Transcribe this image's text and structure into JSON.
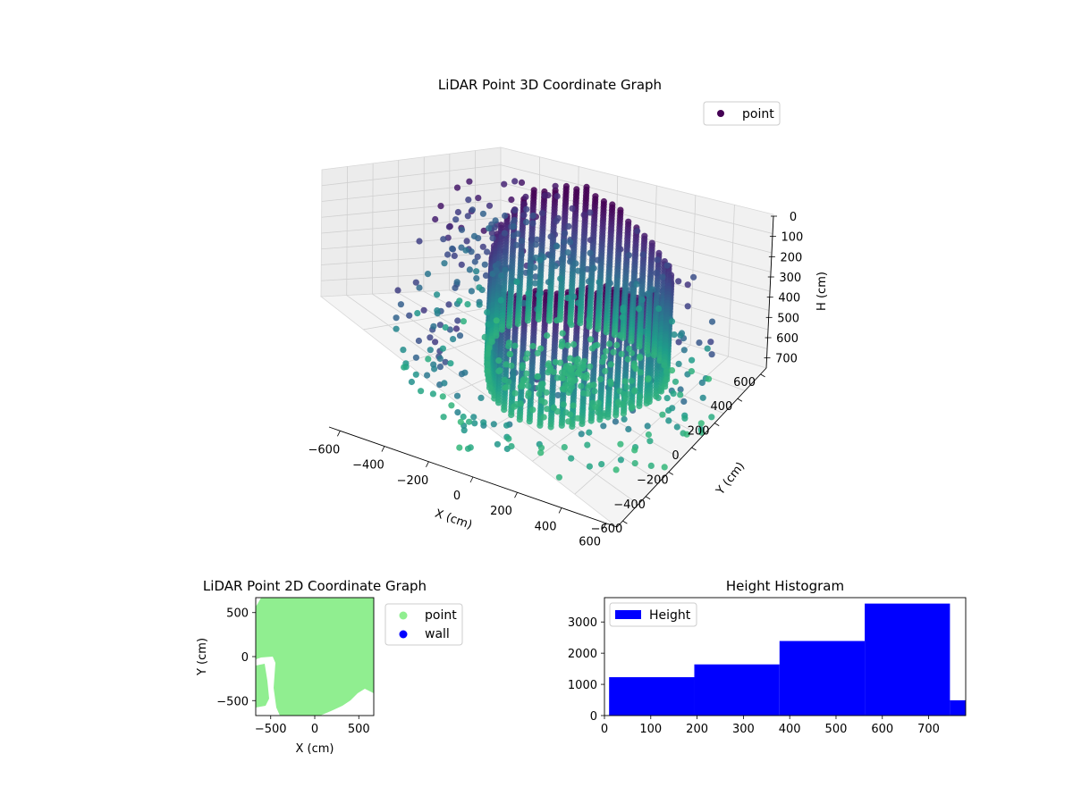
{
  "chart_data": [
    {
      "type": "scatter",
      "title": "LiDAR Point 3D Coordinate Graph",
      "xlabel": "X (cm)",
      "ylabel": "Y (cm)",
      "zlabel": "H (cm)",
      "xticks": [
        "−600",
        "−400",
        "−200",
        "0",
        "200",
        "400",
        "600"
      ],
      "yticks": [
        "−600",
        "−400",
        "−200",
        "0",
        "200",
        "400",
        "600"
      ],
      "zticks": [
        "0",
        "100",
        "200",
        "300",
        "400",
        "500",
        "600",
        "700"
      ],
      "xlim": [
        -650,
        650
      ],
      "ylim": [
        -650,
        650
      ],
      "zlim": [
        0,
        750
      ],
      "z_inverted": true,
      "colormap": "viridis",
      "legend": {
        "position": "top-right",
        "entries": [
          {
            "label": "point",
            "color": "#440154"
          }
        ]
      },
      "series": [
        {
          "name": "point"
        }
      ]
    },
    {
      "type": "scatter",
      "title": "LiDAR Point 2D Coordinate Graph",
      "xlabel": "X (cm)",
      "ylabel": "Y (cm)",
      "xticks": [
        "−500",
        "0",
        "500"
      ],
      "yticks": [
        "−500",
        "0",
        "500"
      ],
      "xlim": [
        -670,
        670
      ],
      "ylim": [
        -670,
        670
      ],
      "legend": {
        "position": "outside-right",
        "entries": [
          {
            "label": "point",
            "color": "#90ee90"
          },
          {
            "label": "wall",
            "color": "#0000ff"
          }
        ]
      },
      "series": [
        {
          "name": "point",
          "color": "#90ee90"
        },
        {
          "name": "wall",
          "color": "#0000ff"
        }
      ]
    },
    {
      "type": "bar",
      "title": "Height Histogram",
      "xticks": [
        "0",
        "100",
        "200",
        "300",
        "400",
        "500",
        "600",
        "700"
      ],
      "yticks": [
        "0",
        "1000",
        "2000",
        "3000"
      ],
      "xlim": [
        0,
        780
      ],
      "ylim": [
        0,
        3780
      ],
      "bin_edges": [
        10,
        194,
        378,
        562,
        746,
        780
      ],
      "counts": [
        1230,
        1640,
        2390,
        3590,
        490
      ],
      "color": "#0000ff",
      "legend": {
        "position": "top-left",
        "entries": [
          {
            "label": "Height",
            "color": "#0000ff"
          }
        ]
      },
      "series": [
        {
          "name": "Height"
        }
      ]
    }
  ]
}
